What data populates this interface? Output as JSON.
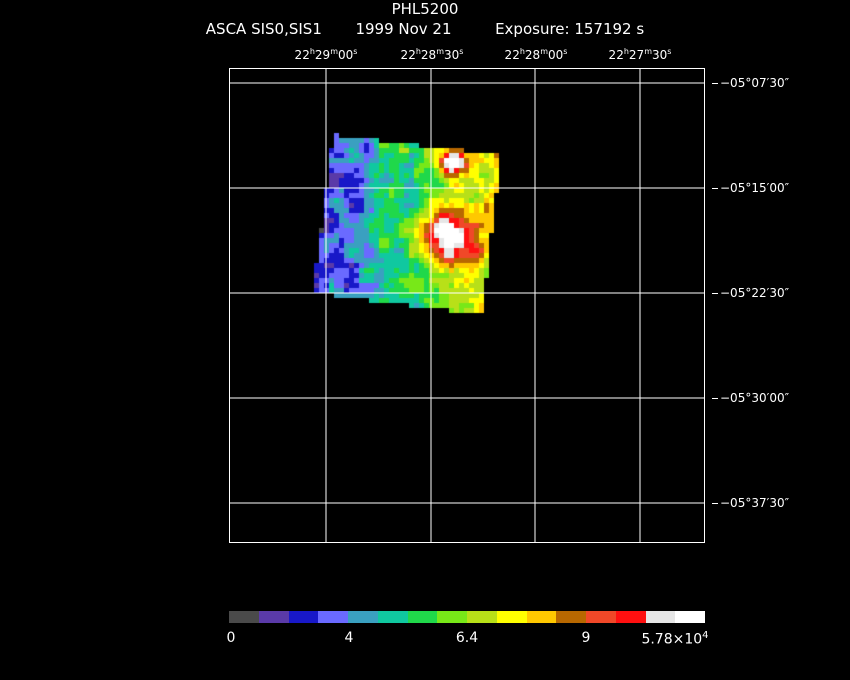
{
  "header": {
    "object": "PHL5200",
    "instrument": "ASCA SIS0,SIS1",
    "date": "1999 Nov 21",
    "exposure": "Exposure: 157192 s"
  },
  "ra_labels": [
    {
      "h": "22",
      "m": "29",
      "s": "00"
    },
    {
      "h": "22",
      "m": "28",
      "s": "30"
    },
    {
      "h": "22",
      "m": "28",
      "s": "00"
    },
    {
      "h": "22",
      "m": "27",
      "s": "30"
    }
  ],
  "dec_labels": [
    "−05°07′30″",
    "−05°15′00″",
    "−05°22′30″",
    "−05°30′00″",
    "−05°37′30″"
  ],
  "colorbar": {
    "colors": [
      "#4a4a4a",
      "#5a3aa8",
      "#1818c8",
      "#6a6aff",
      "#3aa0c0",
      "#10c8a0",
      "#20d84a",
      "#78e818",
      "#b8e018",
      "#ffff00",
      "#ffc800",
      "#b86800",
      "#f04828",
      "#ff1010",
      "#e6e6e6",
      "#ffffff"
    ],
    "labels": [
      "0",
      "4",
      "6.4",
      "9",
      "5.78×10"
    ],
    "exponent": "4"
  }
}
